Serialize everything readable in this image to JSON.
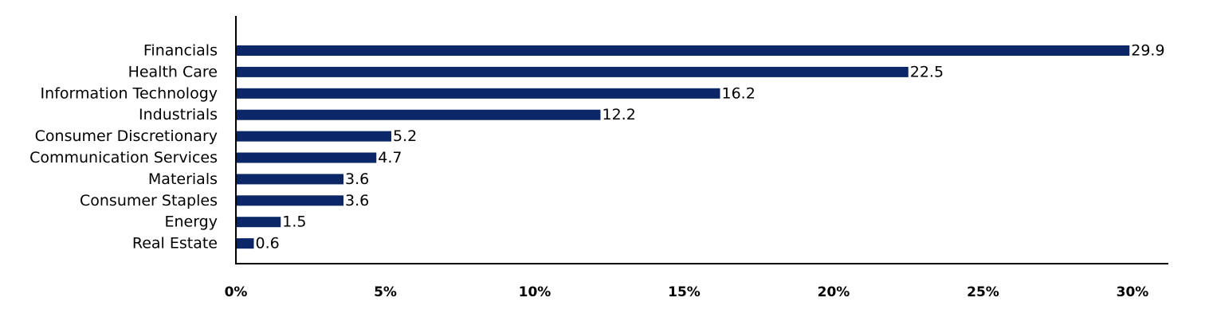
{
  "chart_data": {
    "type": "bar",
    "orientation": "horizontal",
    "categories": [
      "Financials",
      "Health Care",
      "Information Technology",
      "Industrials",
      "Consumer Discretionary",
      "Communication Services",
      "Materials",
      "Consumer Staples",
      "Energy",
      "Real Estate"
    ],
    "values": [
      29.9,
      22.5,
      16.2,
      12.2,
      5.2,
      4.7,
      3.6,
      3.6,
      1.5,
      0.6
    ],
    "value_labels": [
      "29.9",
      "22.5",
      "16.2",
      "12.2",
      "5.2",
      "4.7",
      "3.6",
      "3.6",
      "1.5",
      "0.6"
    ],
    "x_ticks": [
      0,
      5,
      10,
      15,
      20,
      25,
      30
    ],
    "x_tick_labels": [
      "0%",
      "5%",
      "10%",
      "15%",
      "20%",
      "25%",
      "30%"
    ],
    "xlim": [
      0,
      31.2
    ],
    "bar_color": "#0b2767",
    "grid": false,
    "legend": "none"
  }
}
